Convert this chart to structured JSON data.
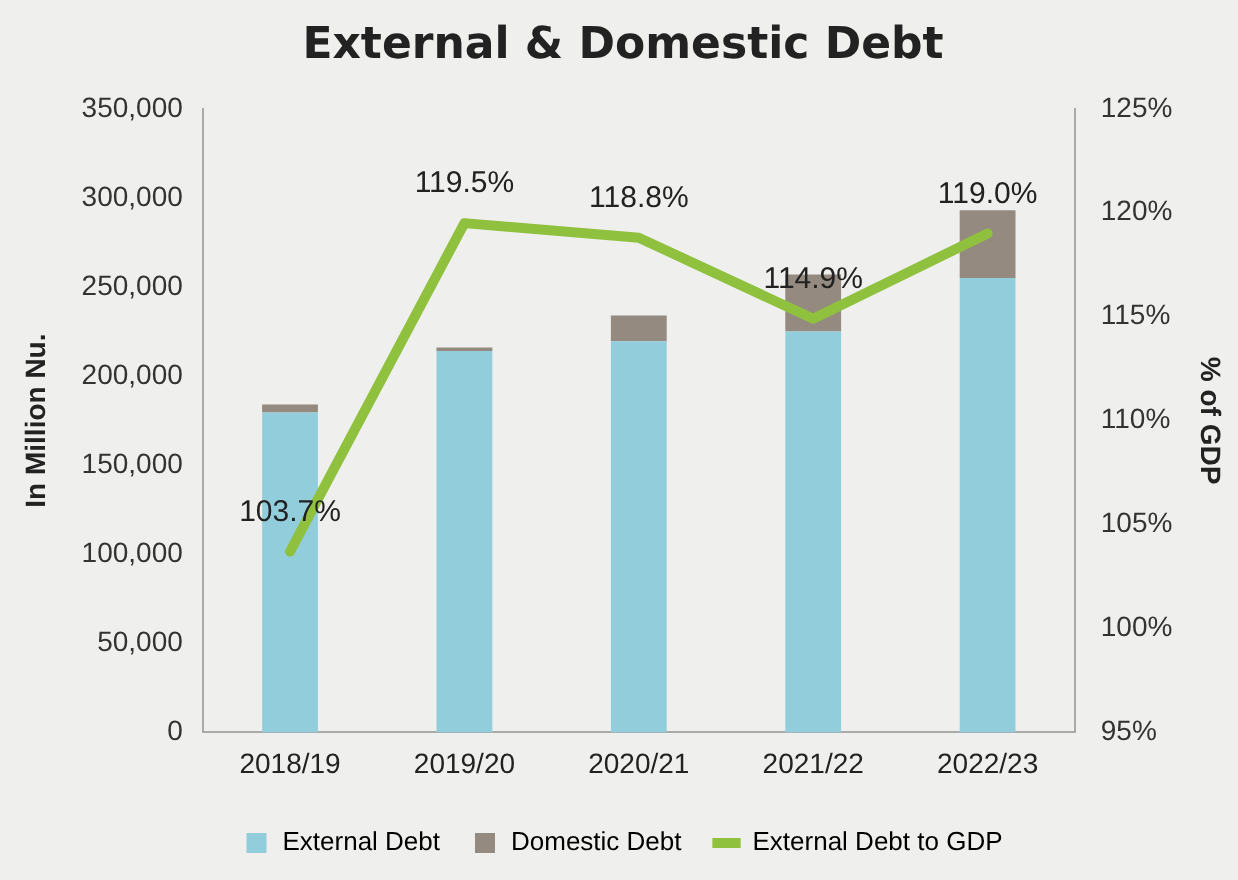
{
  "chart_data": {
    "type": "bar",
    "title": "External & Domestic Debt",
    "ylabel": "In Million Nu.",
    "y2label": "% of GDP",
    "categories": [
      "2018/19",
      "2019/20",
      "2020/21",
      "2021/22",
      "2022/23"
    ],
    "stacked": true,
    "legend": "bottom",
    "series": [
      {
        "name": "External Debt",
        "color": "#92cddc",
        "values": [
          179500,
          214000,
          219500,
          225000,
          255000
        ]
      },
      {
        "name": "Domestic Debt",
        "color": "#948a7f",
        "values": [
          4500,
          2000,
          14500,
          32000,
          38000
        ]
      },
      {
        "name": "External Debt to GDP",
        "type": "line",
        "axis": "y2",
        "color": "#8fc13e",
        "values": [
          103.7,
          119.5,
          118.8,
          114.9,
          119.0
        ],
        "value_labels": [
          "103.7%",
          "119.5%",
          "118.8%",
          "114.9%",
          "119.0%"
        ]
      }
    ],
    "ylim": [
      0,
      350000
    ],
    "yticks": [
      {
        "value": 0,
        "label": "0"
      },
      {
        "value": 50000,
        "label": "50,000"
      },
      {
        "value": 100000,
        "label": "100,000"
      },
      {
        "value": 150000,
        "label": "150,000"
      },
      {
        "value": 200000,
        "label": "200,000"
      },
      {
        "value": 250000,
        "label": "250,000"
      },
      {
        "value": 300000,
        "label": "300,000"
      },
      {
        "value": 350000,
        "label": "350,000"
      }
    ],
    "y2lim": [
      95,
      125
    ],
    "y2ticks": [
      {
        "value": 95,
        "label": "95%"
      },
      {
        "value": 100,
        "label": "100%"
      },
      {
        "value": 105,
        "label": "105%"
      },
      {
        "value": 110,
        "label": "110%"
      },
      {
        "value": 115,
        "label": "115%"
      },
      {
        "value": 120,
        "label": "120%"
      },
      {
        "value": 125,
        "label": "125%"
      }
    ],
    "grid": false,
    "marker": "none",
    "line_style": "solid"
  }
}
